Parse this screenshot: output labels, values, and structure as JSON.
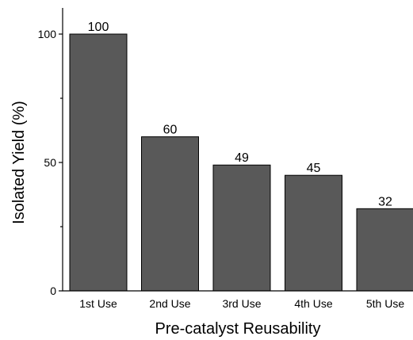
{
  "chart_data": {
    "type": "bar",
    "categories": [
      "1st Use",
      "2nd Use",
      "3rd Use",
      "4th Use",
      "5th Use"
    ],
    "values": [
      100,
      60,
      49,
      45,
      32
    ],
    "data_labels": [
      "100",
      "60",
      "49",
      "45",
      "32"
    ],
    "xlabel": "Pre-catalyst Reusability",
    "ylabel": "Isolated Yield (%)",
    "ylim": [
      0,
      110
    ],
    "yticks": [
      0,
      50,
      100
    ],
    "grid": false,
    "bar_color": "#595959"
  }
}
